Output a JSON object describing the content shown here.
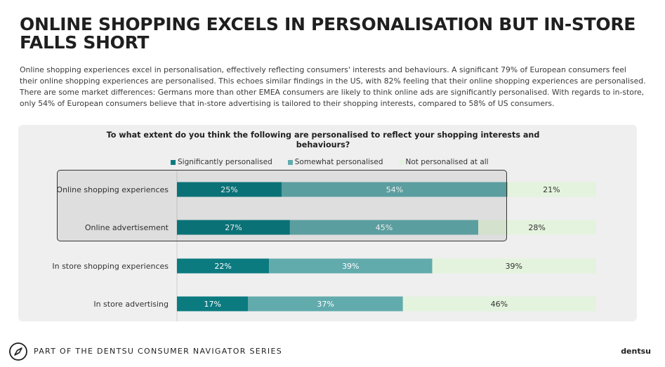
{
  "header": {
    "title": "ONLINE SHOPPING EXCELS IN PERSONALISATION BUT IN-STORE FALLS SHORT",
    "intro": "Online shopping experiences excel in personalisation, effectively reflecting consumers' interests and behaviours. A significant 79% of European consumers feel their online shopping experiences are personalised. This echoes similar findings in the US, with 82% feeling that their online shopping experiences are personalised. There are some market differences: Germans more than other EMEA consumers are likely to think online ads are significantly personalised. With regards to in-store, only 54% of European consumers believe that in-store advertising is tailored to their shopping interests, compared to 58% of US consumers."
  },
  "chart_data": {
    "type": "bar",
    "orientation": "horizontal",
    "stacked": true,
    "title": "To what extent do you think the following are personalised to reflect your shopping interests and behaviours?",
    "categories": [
      "Online shopping experiences",
      "Online advertisement",
      "In store shopping experiences",
      "In store advertising"
    ],
    "series": [
      {
        "name": "Significantly personalised",
        "color": "#0b7b80",
        "values": [
          25,
          27,
          22,
          17
        ],
        "labels": [
          "25%",
          "27%",
          "22%",
          "17%"
        ]
      },
      {
        "name": "Somewhat personalised",
        "color": "#62abad",
        "values": [
          54,
          45,
          39,
          37
        ],
        "labels": [
          "54%",
          "45%",
          "39%",
          "37%"
        ]
      },
      {
        "name": "Not personalised at all",
        "color": "#e3f3dd",
        "values": [
          21,
          28,
          39,
          46
        ],
        "labels": [
          "21%",
          "28%",
          "39%",
          "46%"
        ]
      }
    ],
    "xlim": [
      0,
      100
    ],
    "legend_position": "top",
    "highlighted_categories": [
      "Online shopping experiences",
      "Online advertisement"
    ]
  },
  "footer": {
    "series_text": "PART OF THE DENTSU CONSUMER NAVIGATOR SERIES",
    "brand": "dentsu",
    "icon": "compass-icon"
  }
}
